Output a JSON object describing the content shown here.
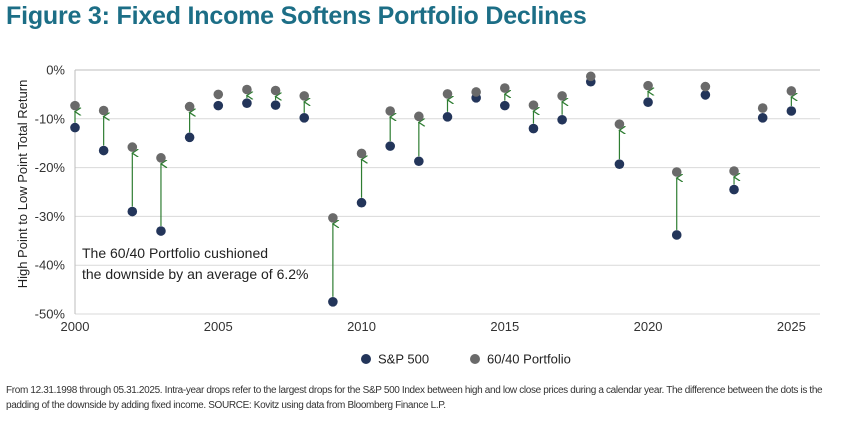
{
  "chart_data": {
    "type": "scatter",
    "title": "Figure 3: Fixed Income Softens Portfolio Declines",
    "xlabel": "",
    "ylabel": "High Point to Low Point Total Return",
    "xlim": [
      2000,
      2026
    ],
    "ylim": [
      -50,
      0
    ],
    "grid": true,
    "x_ticks": [
      "2000",
      "2005",
      "2010",
      "2015",
      "2020",
      "2025"
    ],
    "y_ticks": [
      "0%",
      "-10%",
      "-20%",
      "-30%",
      "-40%",
      "-50%"
    ],
    "x": [
      2000,
      2001,
      2002,
      2003,
      2004,
      2005,
      2006,
      2007,
      2008,
      2009,
      2010,
      2011,
      2012,
      2013,
      2014,
      2015,
      2016,
      2017,
      2018,
      2019,
      2020,
      2021,
      2022,
      2023,
      2024,
      2025
    ],
    "series": [
      {
        "name": "S&P 500",
        "color": "#23355a",
        "values": [
          -11.8,
          -16.5,
          -29,
          -33,
          -13.8,
          -7.3,
          -6.8,
          -7.2,
          -9.8,
          -47.5,
          -27.2,
          -15.6,
          -18.7,
          -9.6,
          -5.7,
          -7.3,
          -12,
          -10.2,
          -2.4,
          -19.3,
          -6.6,
          -33.8,
          -5.1,
          -24.5,
          -9.8,
          -8.4
        ]
      },
      {
        "name": "60/40 Portfolio",
        "color": "#6a6a6a",
        "values": [
          -7.3,
          -8.3,
          -15.8,
          -18,
          -7.5,
          -5,
          -4,
          -4.2,
          -5.3,
          -30.3,
          -17.1,
          -8.4,
          -9.5,
          -4.9,
          -4.5,
          -3.7,
          -7.2,
          -5.3,
          -1.3,
          -11.1,
          -3.2,
          -20.9,
          -3.4,
          -20.7,
          -7.8,
          -4.3
        ]
      }
    ],
    "annotation": [
      "The 60/40 Portfolio cushioned",
      "the downside by an average of 6.2%"
    ],
    "legend_position": "bottom-center",
    "arrow_color": "#2e7d32"
  },
  "footnote": "From 12.31.1998 through 05.31.2025. Intra-year drops refer to the largest drops for the S&P 500 Index between high and low close prices during a calendar year. The difference between the dots is the padding of the downside by adding fixed income. SOURCE: Kovitz using data from Bloomberg Finance L.P."
}
